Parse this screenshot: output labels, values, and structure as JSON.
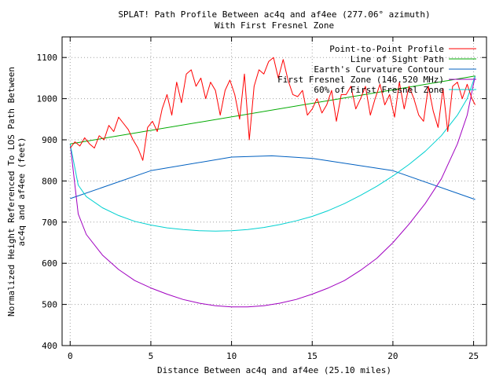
{
  "chart_data": {
    "type": "line",
    "title_line1": "SPLAT! Path Profile Between ac4q and af4ee (277.06° azimuth)",
    "title_line2": "With First Fresnel Zone",
    "xlabel": "Distance Between ac4q and af4ee (25.10 miles)",
    "ylabel_line1": "Normalized Height Referenced To LOS Path Between",
    "ylabel_line2": "ac4q and af4ee (feet)",
    "xlim": [
      -0.5,
      25.8
    ],
    "ylim": [
      400,
      1150
    ],
    "x_ticks": [
      0,
      5,
      10,
      15,
      20,
      25
    ],
    "y_ticks": [
      400,
      500,
      600,
      700,
      800,
      900,
      1000,
      1100
    ],
    "grid": true,
    "legend_position": "top-right",
    "series": [
      {
        "name": "Point-to-Point Profile",
        "color": "#ff0000",
        "x": [
          0.0,
          0.3,
          0.6,
          0.9,
          1.2,
          1.5,
          1.8,
          2.1,
          2.4,
          2.7,
          3.0,
          3.3,
          3.6,
          3.9,
          4.2,
          4.5,
          4.8,
          5.1,
          5.4,
          5.7,
          6.0,
          6.3,
          6.6,
          6.9,
          7.2,
          7.5,
          7.8,
          8.1,
          8.4,
          8.7,
          9.0,
          9.3,
          9.6,
          9.9,
          10.2,
          10.5,
          10.8,
          11.1,
          11.4,
          11.7,
          12.0,
          12.3,
          12.6,
          12.9,
          13.2,
          13.5,
          13.8,
          14.1,
          14.4,
          14.7,
          15.0,
          15.3,
          15.6,
          15.9,
          16.2,
          16.5,
          16.8,
          17.1,
          17.4,
          17.7,
          18.0,
          18.3,
          18.6,
          18.9,
          19.2,
          19.5,
          19.8,
          20.1,
          20.4,
          20.7,
          21.0,
          21.3,
          21.6,
          21.9,
          22.2,
          22.5,
          22.8,
          23.1,
          23.4,
          23.7,
          24.0,
          24.3,
          24.6,
          24.9,
          25.1
        ],
        "y": [
          880,
          895,
          885,
          905,
          890,
          880,
          910,
          900,
          935,
          920,
          955,
          940,
          925,
          900,
          880,
          850,
          930,
          945,
          920,
          975,
          1010,
          960,
          1040,
          990,
          1060,
          1070,
          1030,
          1050,
          1000,
          1040,
          1020,
          960,
          1020,
          1045,
          1010,
          950,
          1060,
          900,
          1030,
          1070,
          1060,
          1090,
          1100,
          1050,
          1095,
          1045,
          1010,
          1005,
          1020,
          960,
          975,
          1000,
          965,
          985,
          1020,
          945,
          1010,
          1010,
          1030,
          975,
          1000,
          1030,
          960,
          1000,
          1035,
          985,
          1010,
          955,
          1040,
          975,
          1030,
          1000,
          960,
          945,
          1030,
          970,
          930,
          1025,
          920,
          1030,
          1040,
          1000,
          1035,
          1000,
          985
        ]
      },
      {
        "name": "Line of Sight Path",
        "color": "#00aa00",
        "x": [
          0,
          25.1
        ],
        "y": [
          890,
          1055
        ]
      },
      {
        "name": "Earth's Curvature Contour",
        "color": "#0060c0",
        "x": [
          0,
          5,
          10,
          12.5,
          15,
          20,
          25.1
        ],
        "y": [
          757,
          825,
          858,
          861,
          855,
          825,
          755
        ]
      },
      {
        "name": "First Fresnel Zone (146.520 MHz)",
        "color": "#a000c0",
        "x": [
          0,
          0.5,
          1,
          2,
          3,
          4,
          5,
          6,
          7,
          8,
          9,
          10,
          11,
          12,
          13,
          14,
          15,
          16,
          17,
          18,
          19,
          20,
          21,
          22,
          23,
          24,
          24.6,
          25.1
        ],
        "y": [
          890,
          720,
          670,
          620,
          585,
          558,
          540,
          525,
          512,
          503,
          497,
          494,
          494,
          497,
          503,
          512,
          525,
          540,
          558,
          583,
          612,
          650,
          695,
          745,
          805,
          890,
          960,
          1055
        ]
      },
      {
        "name": "60% of First Fresnel Zone",
        "color": "#00d0d0",
        "x": [
          0,
          0.5,
          1,
          2,
          3,
          4,
          5,
          6,
          7,
          8,
          9,
          10,
          11,
          12,
          13,
          14,
          15,
          16,
          17,
          18,
          19,
          20,
          21,
          22,
          23,
          24,
          24.6,
          25.1
        ],
        "y": [
          890,
          790,
          762,
          735,
          716,
          702,
          693,
          686,
          682,
          679,
          678,
          679,
          682,
          687,
          694,
          703,
          714,
          728,
          745,
          765,
          787,
          812,
          840,
          872,
          910,
          960,
          1000,
          1055
        ]
      }
    ]
  }
}
